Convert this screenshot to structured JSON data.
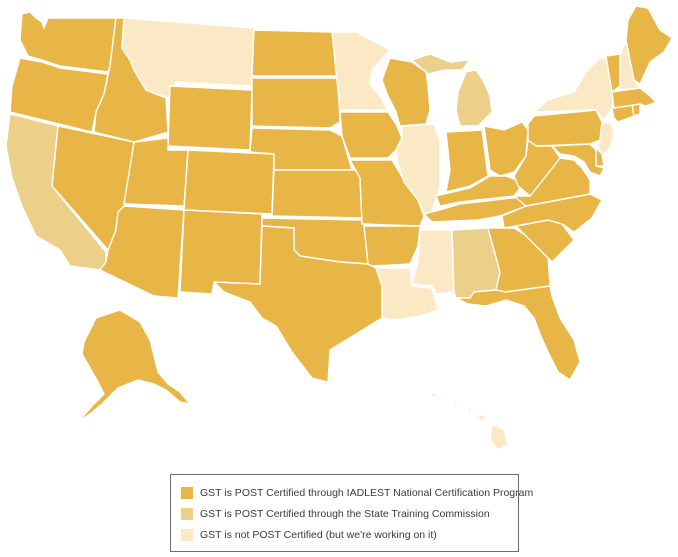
{
  "colors": {
    "iadlest": "#e8b547",
    "commission": "#eccf88",
    "not_certified": "#fbe9c6",
    "state_border": "#ffffff"
  },
  "legend": {
    "items": [
      {
        "key": "iadlest",
        "label": "GST is POST Certified through IADLEST National Certification Program"
      },
      {
        "key": "commission",
        "label": "GST is POST Certified through the State Training Commission"
      },
      {
        "key": "not_certified",
        "label": "GST is not POST Certified (but we're working on it)"
      }
    ]
  },
  "states": {
    "WA": "iadlest",
    "OR": "iadlest",
    "CA": "commission",
    "NV": "iadlest",
    "ID": "iadlest",
    "MT": "not_certified",
    "WY": "iadlest",
    "UT": "iadlest",
    "AZ": "iadlest",
    "CO": "iadlest",
    "NM": "iadlest",
    "ND": "iadlest",
    "SD": "iadlest",
    "NE": "iadlest",
    "KS": "iadlest",
    "OK": "iadlest",
    "TX": "iadlest",
    "MN": "not_certified",
    "IA": "iadlest",
    "MO": "iadlest",
    "AR": "iadlest",
    "LA": "not_certified",
    "WI": "iadlest",
    "IL": "not_certified",
    "MI": "commission",
    "IN": "iadlest",
    "OH": "iadlest",
    "KY": "iadlest",
    "TN": "iadlest",
    "MS": "not_certified",
    "AL": "commission",
    "GA": "iadlest",
    "FL": "iadlest",
    "SC": "iadlest",
    "NC": "iadlest",
    "VA": "iadlest",
    "WV": "iadlest",
    "PA": "iadlest",
    "NY": "not_certified",
    "VT": "iadlest",
    "NH": "not_certified",
    "ME": "iadlest",
    "MA": "iadlest",
    "RI": "iadlest",
    "CT": "iadlest",
    "NJ": "not_certified",
    "DE": "iadlest",
    "MD": "iadlest",
    "AK": "iadlest",
    "HI": "not_certified"
  }
}
